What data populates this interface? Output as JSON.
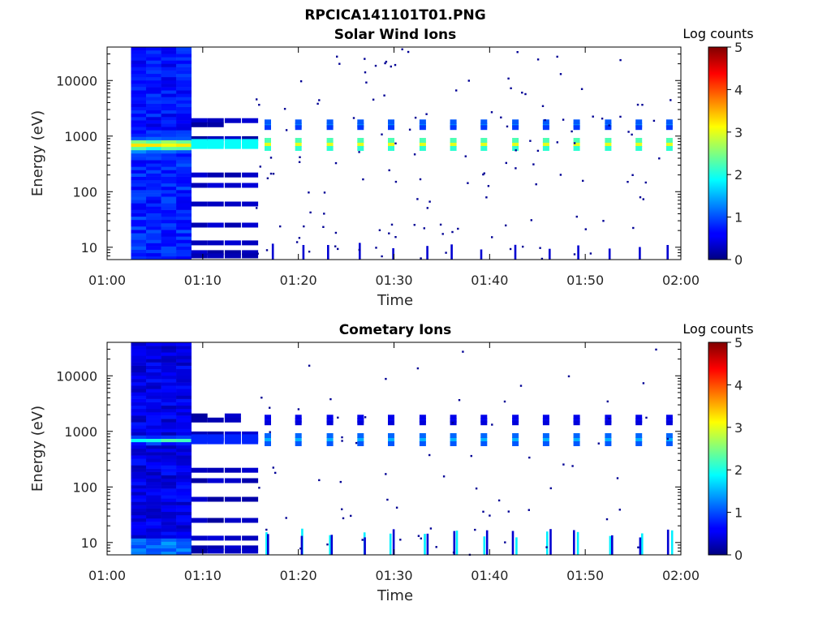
{
  "figure": {
    "title": "RPCICA141101T01.PNG"
  },
  "chart_data": [
    {
      "type": "heatmap",
      "title": "Solar Wind Ions",
      "xlabel": "Time",
      "ylabel": "Energy (eV)",
      "x_range": [
        "01:00",
        "02:00"
      ],
      "x_ticks": [
        "01:00",
        "01:10",
        "01:20",
        "01:30",
        "01:40",
        "01:50",
        "02:00"
      ],
      "y_scale": "log",
      "y_range_ev": [
        6,
        40000
      ],
      "y_ticks": [
        "10",
        "100",
        "1000",
        "10000"
      ],
      "colorbar": {
        "label": "Log counts",
        "range": [
          0,
          5
        ],
        "ticks": [
          "0",
          "1",
          "2",
          "3",
          "4",
          "5"
        ],
        "colormap": "jet"
      },
      "dense_interval": [
        "01:02.5",
        "01:08.8"
      ],
      "dense_peak_energy_ev": 700,
      "dense_peak_log_counts": 2.3,
      "sweep_times": [
        "01:16.8",
        "01:20",
        "01:23.3",
        "01:26.5",
        "01:29.7",
        "01:33",
        "01:36.2",
        "01:39.4",
        "01:42.7",
        "01:45.9",
        "01:49.1",
        "01:52.4",
        "01:55.6",
        "01:58.8"
      ],
      "burst_energy_ev": 750,
      "burst_peak_log_counts": 3,
      "grid": false
    },
    {
      "type": "heatmap",
      "title": "Cometary Ions",
      "xlabel": "Time",
      "ylabel": "Energy (eV)",
      "x_range": [
        "01:00",
        "02:00"
      ],
      "x_ticks": [
        "01:00",
        "01:10",
        "01:20",
        "01:30",
        "01:40",
        "01:50",
        "02:00"
      ],
      "y_scale": "log",
      "y_range_ev": [
        6,
        40000
      ],
      "y_ticks": [
        "10",
        "100",
        "1000",
        "10000"
      ],
      "colorbar": {
        "label": "Log counts",
        "range": [
          0,
          5
        ],
        "ticks": [
          "0",
          "1",
          "2",
          "3",
          "4",
          "5"
        ],
        "colormap": "jet"
      },
      "dense_interval": [
        "01:02.5",
        "01:08.8"
      ],
      "dense_peak_energy_ev": 700,
      "dense_peak_log_counts": 1.6,
      "sweep_times": [
        "01:16.8",
        "01:20",
        "01:23.3",
        "01:26.5",
        "01:29.7",
        "01:33",
        "01:36.2",
        "01:39.4",
        "01:42.7",
        "01:45.9",
        "01:49.1",
        "01:52.4",
        "01:55.6",
        "01:58.8"
      ],
      "burst_energy_ev": 750,
      "burst_peak_log_counts": 1.5,
      "grid": false
    }
  ]
}
